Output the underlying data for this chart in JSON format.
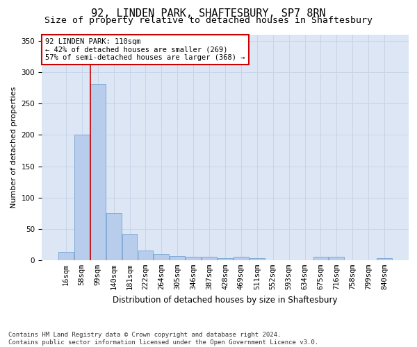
{
  "title": "92, LINDEN PARK, SHAFTESBURY, SP7 8RN",
  "subtitle": "Size of property relative to detached houses in Shaftesbury",
  "xlabel": "Distribution of detached houses by size in Shaftesbury",
  "ylabel": "Number of detached properties",
  "bin_labels": [
    "16sqm",
    "58sqm",
    "99sqm",
    "140sqm",
    "181sqm",
    "222sqm",
    "264sqm",
    "305sqm",
    "346sqm",
    "387sqm",
    "428sqm",
    "469sqm",
    "511sqm",
    "552sqm",
    "593sqm",
    "634sqm",
    "675sqm",
    "716sqm",
    "758sqm",
    "799sqm",
    "840sqm"
  ],
  "bar_heights": [
    13,
    201,
    281,
    75,
    42,
    15,
    10,
    7,
    5,
    5,
    3,
    5,
    3,
    0,
    0,
    0,
    5,
    5,
    0,
    0,
    3
  ],
  "bar_color": "#b8cceb",
  "bar_edge_color": "#6699cc",
  "bar_edge_width": 0.5,
  "highlight_line_color": "#cc0000",
  "annotation_text": "92 LINDEN PARK: 110sqm\n← 42% of detached houses are smaller (269)\n57% of semi-detached houses are larger (368) →",
  "annotation_box_facecolor": "#ffffff",
  "annotation_box_edgecolor": "#cc0000",
  "ylim": [
    0,
    360
  ],
  "yticks": [
    0,
    50,
    100,
    150,
    200,
    250,
    300,
    350
  ],
  "grid_color": "#c8d4e8",
  "plot_bg_color": "#dce6f5",
  "footer_line1": "Contains HM Land Registry data © Crown copyright and database right 2024.",
  "footer_line2": "Contains public sector information licensed under the Open Government Licence v3.0.",
  "title_fontsize": 11,
  "subtitle_fontsize": 9.5,
  "xlabel_fontsize": 8.5,
  "ylabel_fontsize": 8,
  "tick_fontsize": 7.5,
  "annot_fontsize": 7.5,
  "footer_fontsize": 6.5
}
